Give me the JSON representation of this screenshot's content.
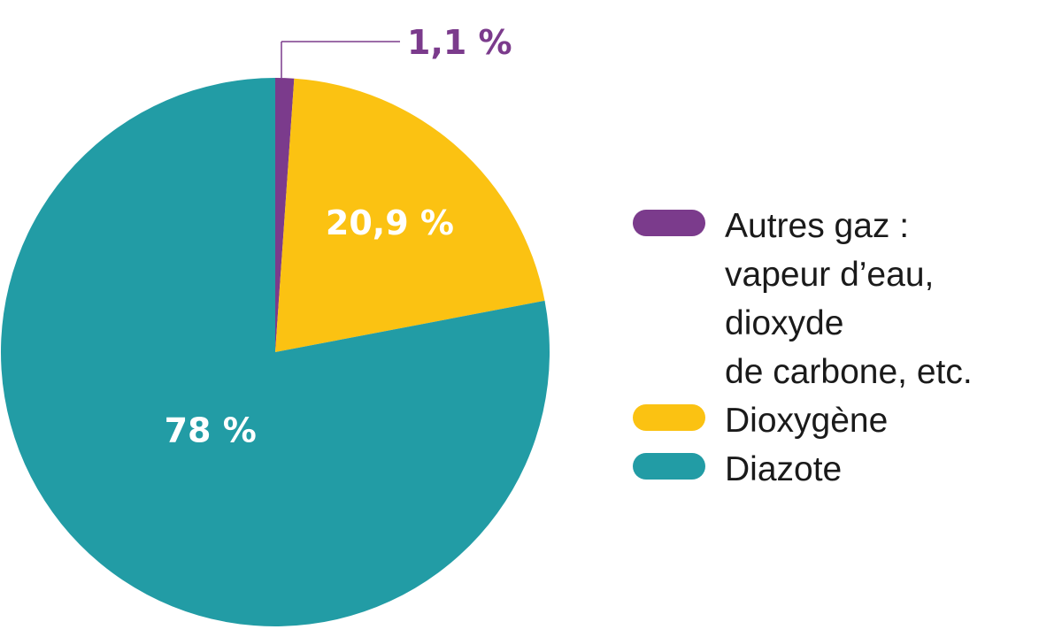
{
  "chart_data": {
    "type": "pie",
    "slices": [
      {
        "label": "Autres gaz :\nvapeur d’eau,\ndioxyde\nde carbone, etc.",
        "value": 1.1,
        "display": "1,1 %",
        "color": "#7b3b8c"
      },
      {
        "label": "Dioxygène",
        "value": 20.9,
        "display": "20,9 %",
        "color": "#fbc212"
      },
      {
        "label": "Diazote",
        "value": 78,
        "display": "78 %",
        "color": "#229ca5"
      }
    ],
    "legend_position": "right",
    "start_angle": "top, clockwise"
  }
}
